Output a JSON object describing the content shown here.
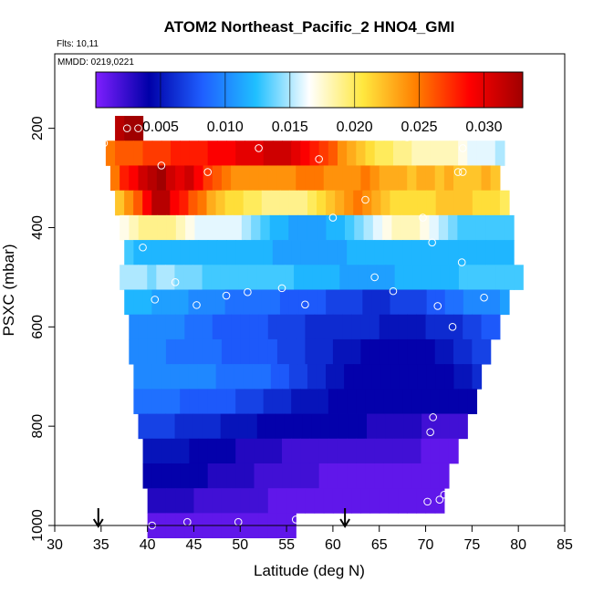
{
  "chart_data": {
    "type": "heatmap",
    "title": "ATOM2 Northeast_Pacific_2 HNO4_GMI",
    "flights_label": "Flts: 10,11",
    "dates_label": "MMDD: 0219,0221",
    "xlabel": "Latitude (deg N)",
    "ylabel": "PSXC (mbar)",
    "xlim": [
      30,
      85
    ],
    "ylim": [
      1000,
      50
    ],
    "y_reversed": true,
    "x_ticks": [
      "30",
      "35",
      "40",
      "45",
      "50",
      "55",
      "60",
      "65",
      "70",
      "75",
      "80",
      "85"
    ],
    "y_ticks": [
      "200",
      "400",
      "600",
      "800",
      "1000"
    ],
    "colorbar": {
      "range": [
        0.0,
        0.033
      ],
      "ticks": [
        "0.005",
        "0.010",
        "0.015",
        "0.020",
        "0.025",
        "0.030"
      ],
      "tick_values": [
        0.005,
        0.01,
        0.015,
        0.02,
        0.025,
        0.03
      ],
      "colors": [
        "#7f1fff",
        "#0000a8",
        "#1f5fff",
        "#1fbfff",
        "#ffffff",
        "#ffe83f",
        "#ff7f00",
        "#ff0000",
        "#a00000"
      ]
    },
    "pressure_levels": [
      {
        "p": 200,
        "lat_min": 36.5,
        "lat_max": 39.5,
        "values": [
          0.032,
          0.033,
          0.033
        ]
      },
      {
        "p": 250,
        "lat_min": 35.5,
        "lat_max": 78.5,
        "values": [
          0.025,
          0.026,
          0.026,
          0.026,
          0.027,
          0.027,
          0.027,
          0.028,
          0.028,
          0.028,
          0.028,
          0.029,
          0.029,
          0.029,
          0.03,
          0.03,
          0.03,
          0.031,
          0.031,
          0.031,
          0.03,
          0.029,
          0.028,
          0.027,
          0.026,
          0.024,
          0.023,
          0.022,
          0.021,
          0.02,
          0.02,
          0.019,
          0.019,
          0.018,
          0.018,
          0.018,
          0.018,
          0.018,
          0.017,
          0.016,
          0.016,
          0.016,
          0.015
        ]
      },
      {
        "p": 300,
        "lat_min": 36.0,
        "lat_max": 78.0,
        "values": [
          0.025,
          0.028,
          0.029,
          0.031,
          0.032,
          0.033,
          0.031,
          0.03,
          0.031,
          0.029,
          0.027,
          0.026,
          0.025,
          0.024,
          0.024,
          0.024,
          0.024,
          0.024,
          0.024,
          0.024,
          0.025,
          0.025,
          0.025,
          0.024,
          0.024,
          0.024,
          0.024,
          0.025,
          0.024,
          0.023,
          0.023,
          0.023,
          0.022,
          0.023,
          0.023,
          0.022,
          0.023,
          0.022,
          0.022,
          0.022,
          0.023,
          0.022
        ]
      },
      {
        "p": 350,
        "lat_min": 36.5,
        "lat_max": 79.0,
        "values": [
          0.022,
          0.024,
          0.026,
          0.029,
          0.032,
          0.032,
          0.029,
          0.028,
          0.026,
          0.025,
          0.023,
          0.022,
          0.021,
          0.021,
          0.02,
          0.02,
          0.019,
          0.019,
          0.019,
          0.019,
          0.019,
          0.02,
          0.021,
          0.022,
          0.023,
          0.024,
          0.025,
          0.024,
          0.023,
          0.022,
          0.021,
          0.021,
          0.021,
          0.021,
          0.021,
          0.022,
          0.022,
          0.022,
          0.022,
          0.021,
          0.021,
          0.021,
          0.02
        ]
      },
      {
        "p": 400,
        "lat_min": 37.0,
        "lat_max": 79.5,
        "values": [
          0.017,
          0.018,
          0.019,
          0.019,
          0.019,
          0.019,
          0.018,
          0.017,
          0.016,
          0.016,
          0.016,
          0.016,
          0.016,
          0.015,
          0.014,
          0.013,
          0.012,
          0.012,
          0.011,
          0.011,
          0.011,
          0.011,
          0.012,
          0.012,
          0.013,
          0.014,
          0.015,
          0.016,
          0.017,
          0.018,
          0.018,
          0.018,
          0.017,
          0.016,
          0.015,
          0.014,
          0.013,
          0.013,
          0.013,
          0.013,
          0.013,
          0.013
        ]
      },
      {
        "p": 450,
        "lat_min": 37.5,
        "lat_max": 79.5,
        "values": [
          0.013,
          0.012,
          0.012,
          0.012,
          0.012,
          0.012,
          0.012,
          0.012,
          0.012,
          0.012,
          0.012,
          0.012,
          0.012,
          0.012,
          0.012,
          0.012,
          0.011,
          0.011,
          0.011,
          0.011,
          0.011,
          0.011,
          0.011,
          0.011,
          0.012,
          0.012,
          0.012,
          0.012,
          0.012,
          0.012,
          0.012,
          0.012,
          0.012,
          0.012,
          0.012,
          0.012,
          0.012,
          0.012,
          0.012,
          0.012,
          0.012,
          0.012
        ]
      },
      {
        "p": 500,
        "lat_min": 37.0,
        "lat_max": 80.5,
        "values": [
          0.015,
          0.015,
          0.015,
          0.014,
          0.015,
          0.015,
          0.014,
          0.014,
          0.014,
          0.013,
          0.013,
          0.013,
          0.013,
          0.013,
          0.013,
          0.013,
          0.013,
          0.013,
          0.013,
          0.012,
          0.012,
          0.012,
          0.012,
          0.012,
          0.011,
          0.011,
          0.011,
          0.011,
          0.011,
          0.011,
          0.012,
          0.012,
          0.012,
          0.012,
          0.012,
          0.012,
          0.012,
          0.013,
          0.013,
          0.013,
          0.013,
          0.013,
          0.013,
          0.013
        ]
      },
      {
        "p": 550,
        "lat_min": 37.5,
        "lat_max": 79.0,
        "values": [
          0.012,
          0.012,
          0.012,
          0.011,
          0.011,
          0.011,
          0.011,
          0.01,
          0.01,
          0.01,
          0.01,
          0.009,
          0.009,
          0.009,
          0.009,
          0.009,
          0.009,
          0.008,
          0.008,
          0.008,
          0.008,
          0.008,
          0.007,
          0.007,
          0.007,
          0.007,
          0.006,
          0.006,
          0.006,
          0.007,
          0.007,
          0.007,
          0.007,
          0.008,
          0.008,
          0.009,
          0.009,
          0.01,
          0.01,
          0.01,
          0.01,
          0.011
        ]
      },
      {
        "p": 600,
        "lat_min": 38.0,
        "lat_max": 78.0,
        "values": [
          0.01,
          0.01,
          0.01,
          0.01,
          0.01,
          0.01,
          0.009,
          0.009,
          0.009,
          0.008,
          0.008,
          0.008,
          0.008,
          0.008,
          0.008,
          0.007,
          0.007,
          0.007,
          0.007,
          0.006,
          0.006,
          0.006,
          0.006,
          0.006,
          0.006,
          0.006,
          0.006,
          0.005,
          0.005,
          0.005,
          0.005,
          0.005,
          0.006,
          0.006,
          0.006,
          0.006,
          0.007,
          0.007,
          0.008,
          0.008
        ]
      },
      {
        "p": 650,
        "lat_min": 38.0,
        "lat_max": 77.0,
        "values": [
          0.01,
          0.01,
          0.01,
          0.01,
          0.009,
          0.009,
          0.009,
          0.009,
          0.009,
          0.009,
          0.008,
          0.008,
          0.008,
          0.008,
          0.008,
          0.008,
          0.007,
          0.007,
          0.007,
          0.006,
          0.006,
          0.006,
          0.005,
          0.005,
          0.005,
          0.004,
          0.004,
          0.004,
          0.004,
          0.004,
          0.004,
          0.004,
          0.004,
          0.005,
          0.005,
          0.006,
          0.006,
          0.007,
          0.007
        ]
      },
      {
        "p": 700,
        "lat_min": 38.5,
        "lat_max": 76.0,
        "values": [
          0.01,
          0.01,
          0.01,
          0.01,
          0.01,
          0.01,
          0.01,
          0.01,
          0.01,
          0.009,
          0.009,
          0.009,
          0.009,
          0.009,
          0.009,
          0.008,
          0.008,
          0.007,
          0.007,
          0.006,
          0.006,
          0.005,
          0.005,
          0.004,
          0.004,
          0.004,
          0.004,
          0.004,
          0.004,
          0.004,
          0.004,
          0.004,
          0.004,
          0.004,
          0.004,
          0.005,
          0.005,
          0.006
        ]
      },
      {
        "p": 750,
        "lat_min": 38.5,
        "lat_max": 75.5,
        "values": [
          0.009,
          0.009,
          0.009,
          0.009,
          0.009,
          0.008,
          0.008,
          0.008,
          0.008,
          0.008,
          0.008,
          0.007,
          0.007,
          0.007,
          0.006,
          0.006,
          0.006,
          0.005,
          0.005,
          0.005,
          0.005,
          0.004,
          0.004,
          0.004,
          0.004,
          0.004,
          0.004,
          0.004,
          0.004,
          0.004,
          0.004,
          0.004,
          0.004,
          0.004,
          0.004,
          0.004,
          0.004
        ]
      },
      {
        "p": 800,
        "lat_min": 39.0,
        "lat_max": 74.5,
        "values": [
          0.007,
          0.007,
          0.007,
          0.007,
          0.006,
          0.006,
          0.006,
          0.006,
          0.006,
          0.005,
          0.005,
          0.005,
          0.005,
          0.004,
          0.004,
          0.004,
          0.004,
          0.004,
          0.004,
          0.004,
          0.004,
          0.004,
          0.004,
          0.004,
          0.004,
          0.003,
          0.003,
          0.003,
          0.003,
          0.003,
          0.003,
          0.002,
          0.002,
          0.002,
          0.002,
          0.002
        ]
      },
      {
        "p": 850,
        "lat_min": 39.5,
        "lat_max": 73.5,
        "values": [
          0.005,
          0.005,
          0.005,
          0.005,
          0.005,
          0.004,
          0.004,
          0.004,
          0.004,
          0.004,
          0.003,
          0.003,
          0.003,
          0.003,
          0.003,
          0.002,
          0.002,
          0.002,
          0.002,
          0.002,
          0.002,
          0.002,
          0.002,
          0.002,
          0.002,
          0.002,
          0.002,
          0.002,
          0.002,
          0.002,
          0.001,
          0.001,
          0.001,
          0.001
        ]
      },
      {
        "p": 900,
        "lat_min": 39.5,
        "lat_max": 72.5,
        "values": [
          0.004,
          0.004,
          0.004,
          0.004,
          0.004,
          0.004,
          0.004,
          0.003,
          0.003,
          0.003,
          0.003,
          0.003,
          0.002,
          0.002,
          0.002,
          0.002,
          0.002,
          0.002,
          0.002,
          0.001,
          0.001,
          0.001,
          0.001,
          0.001,
          0.001,
          0.001,
          0.001,
          0.001,
          0.001,
          0.001,
          0.001,
          0.001,
          0.001
        ]
      },
      {
        "p": 950,
        "lat_min": 40.0,
        "lat_max": 72.0,
        "values": [
          0.003,
          0.003,
          0.003,
          0.003,
          0.003,
          0.002,
          0.002,
          0.002,
          0.002,
          0.002,
          0.002,
          0.002,
          0.002,
          0.001,
          0.001,
          0.001,
          0.001,
          0.001,
          0.001,
          0.001,
          0.001,
          0.001,
          0.001,
          0.001,
          0.001,
          0.001,
          0.001,
          0.001,
          0.001,
          0.001,
          0.001,
          0.001
        ]
      },
      {
        "p": 1000,
        "lat_min": 40.0,
        "lat_max": 56.0,
        "values": [
          0.001,
          0.001,
          0.001,
          0.001,
          0.001,
          0.001,
          0.001,
          0.001,
          0.001,
          0.001,
          0.001,
          0.001,
          0.001,
          0.001,
          0.001,
          0.001
        ]
      }
    ],
    "observations": [
      {
        "lat": 35.8,
        "p": 205
      },
      {
        "lat": 37.8,
        "p": 200
      },
      {
        "lat": 39.0,
        "p": 200
      },
      {
        "lat": 35.3,
        "p": 230
      },
      {
        "lat": 68.0,
        "p": 218
      },
      {
        "lat": 52.0,
        "p": 240
      },
      {
        "lat": 74.0,
        "p": 240
      },
      {
        "lat": 58.5,
        "p": 262
      },
      {
        "lat": 41.5,
        "p": 275
      },
      {
        "lat": 46.5,
        "p": 288
      },
      {
        "lat": 73.5,
        "p": 288
      },
      {
        "lat": 74.0,
        "p": 288
      },
      {
        "lat": 63.5,
        "p": 344
      },
      {
        "lat": 60.0,
        "p": 380
      },
      {
        "lat": 69.7,
        "p": 380
      },
      {
        "lat": 70.7,
        "p": 430
      },
      {
        "lat": 39.5,
        "p": 440
      },
      {
        "lat": 73.9,
        "p": 470
      },
      {
        "lat": 80.0,
        "p": 460
      },
      {
        "lat": 64.5,
        "p": 500
      },
      {
        "lat": 43.0,
        "p": 510
      },
      {
        "lat": 54.5,
        "p": 522
      },
      {
        "lat": 66.5,
        "p": 528
      },
      {
        "lat": 50.8,
        "p": 530
      },
      {
        "lat": 48.5,
        "p": 537
      },
      {
        "lat": 40.8,
        "p": 545
      },
      {
        "lat": 76.3,
        "p": 541
      },
      {
        "lat": 45.3,
        "p": 556
      },
      {
        "lat": 57.0,
        "p": 555
      },
      {
        "lat": 71.3,
        "p": 558
      },
      {
        "lat": 72.9,
        "p": 600
      },
      {
        "lat": 70.8,
        "p": 782
      },
      {
        "lat": 70.5,
        "p": 812
      },
      {
        "lat": 70.2,
        "p": 952
      },
      {
        "lat": 71.5,
        "p": 948
      },
      {
        "lat": 72.0,
        "p": 938
      },
      {
        "lat": 56.0,
        "p": 988
      },
      {
        "lat": 44.3,
        "p": 993
      },
      {
        "lat": 49.8,
        "p": 993
      },
      {
        "lat": 40.5,
        "p": 1000
      }
    ],
    "arrows": [
      {
        "lat": 34.7
      },
      {
        "lat": 61.3
      }
    ]
  }
}
